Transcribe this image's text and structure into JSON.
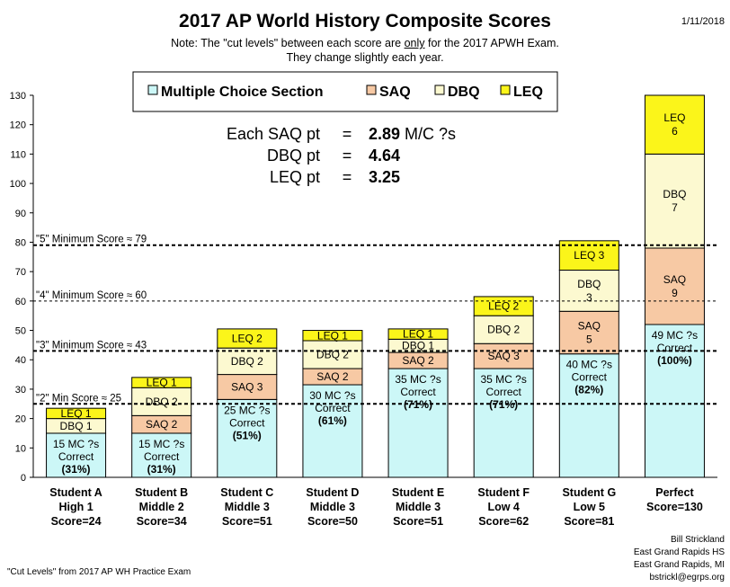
{
  "title": "2017 AP World History Composite Scores",
  "date": "1/11/2018",
  "note_line1_before": "Note: The \"cut levels\" between each score are ",
  "note_line1_emph": "only",
  "note_line1_after": " for the 2017 APWH Exam.",
  "note_line2": "They change slightly each year.",
  "conversion": {
    "rows": [
      {
        "label": "Each SAQ pt",
        "eq": "=",
        "value": "2.89",
        "unit": " M/C ?s"
      },
      {
        "label": "DBQ pt",
        "eq": "=",
        "value": "4.64",
        "unit": ""
      },
      {
        "label": "LEQ pt",
        "eq": "=",
        "value": "3.25",
        "unit": ""
      }
    ]
  },
  "footer_left": "\"Cut Levels\" from 2017  AP WH Practice Exam",
  "credits": [
    "Bill Strickland",
    "East Grand Rapids HS",
    "East Grand Rapids, MI",
    "bstrickl@egrps.org"
  ],
  "colors": {
    "mc": "#ccf7f7",
    "saq": "#f7c9a4",
    "dbq": "#fcf9d0",
    "leq": "#fbf51a",
    "border": "#000000"
  },
  "chart_data": {
    "type": "bar",
    "stacked": true,
    "ylim": [
      0,
      130
    ],
    "yticks": [
      0,
      10,
      20,
      30,
      40,
      50,
      60,
      70,
      80,
      90,
      100,
      110,
      120,
      130
    ],
    "grid": false,
    "legend_position": "top",
    "categories": [
      [
        "Student A",
        "High 1",
        "Score=24"
      ],
      [
        "Student B",
        "Middle 2",
        "Score=34"
      ],
      [
        "Student C",
        "Middle 3",
        "Score=51"
      ],
      [
        "Student D",
        "Middle 3",
        "Score=50"
      ],
      [
        "Student E",
        "Middle 3",
        "Score=51"
      ],
      [
        "Student F",
        "Low 4",
        "Score=62"
      ],
      [
        "Student G",
        "Low 5",
        "Score=81"
      ],
      [
        "Perfect",
        "Score=130"
      ]
    ],
    "series": [
      {
        "name": "Multiple Choice Section",
        "color": "#ccf7f7",
        "values": [
          15,
          15,
          26.5,
          31.5,
          37,
          37,
          42,
          52
        ],
        "labels": [
          [
            "15 MC ?s",
            "Correct",
            "(31%)"
          ],
          [
            "15 MC ?s",
            "Correct",
            "(31%)"
          ],
          [
            "25 MC ?s",
            "Correct",
            "(51%)"
          ],
          [
            "30 MC ?s",
            "Correct",
            "(61%)"
          ],
          [
            "35 MC ?s",
            "Correct",
            "(71%)"
          ],
          [
            "35 MC ?s",
            "Correct",
            "(71%)"
          ],
          [
            "40 MC ?s",
            "Correct",
            "(82%)"
          ],
          [
            "49 MC ?s",
            "Correct",
            "(100%)"
          ]
        ]
      },
      {
        "name": "SAQ",
        "color": "#f7c9a4",
        "values": [
          0,
          6,
          8.5,
          5.5,
          5.5,
          8.5,
          14.5,
          26
        ],
        "labels": [
          [
            ""
          ],
          [
            "SAQ  2"
          ],
          [
            "SAQ 3"
          ],
          [
            "SAQ 2"
          ],
          [
            "SAQ 2"
          ],
          [
            "SAQ 3"
          ],
          [
            "SAQ",
            "5"
          ],
          [
            "SAQ",
            "9"
          ]
        ]
      },
      {
        "name": "DBQ",
        "color": "#fcf9d0",
        "values": [
          5,
          9.5,
          9,
          9.5,
          4.5,
          9.5,
          14,
          32
        ],
        "labels": [
          [
            "DBQ  1"
          ],
          [
            "DBQ  2"
          ],
          [
            "DBQ 2"
          ],
          [
            "DBQ 2"
          ],
          [
            "DBQ 1"
          ],
          [
            "DBQ 2"
          ],
          [
            "DBQ",
            "3"
          ],
          [
            "DBQ",
            "7"
          ]
        ]
      },
      {
        "name": "LEQ",
        "color": "#fbf51a",
        "values": [
          3.5,
          3.5,
          6.5,
          3.5,
          3.5,
          6.5,
          10,
          20
        ],
        "labels": [
          [
            "LEQ 1"
          ],
          [
            "LEQ 1"
          ],
          [
            "LEQ 2"
          ],
          [
            "LEQ 1"
          ],
          [
            "LEQ 1"
          ],
          [
            "LEQ 2"
          ],
          [
            "LEQ 3"
          ],
          [
            "LEQ",
            "6"
          ]
        ]
      }
    ],
    "reference_lines": [
      {
        "y": 79,
        "label": "\"5\" Minimum Score ≈ 79",
        "style": "heavy"
      },
      {
        "y": 60,
        "label": "\"4\" Minimum Score ≈ 60",
        "style": "light"
      },
      {
        "y": 43,
        "label": "\"3\" Minimum Score ≈ 43",
        "style": "heavy"
      },
      {
        "y": 25,
        "label": "\"2\" Min Score ≈ 25",
        "style": "heavy"
      }
    ]
  }
}
